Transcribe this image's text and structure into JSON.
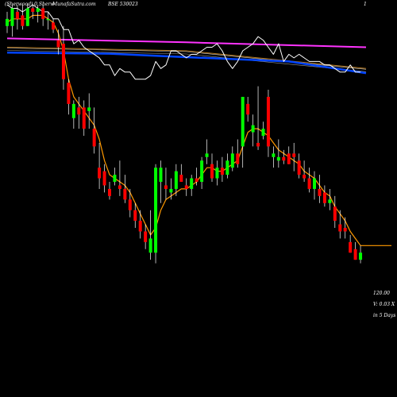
{
  "header": {
    "left": "(Sherwood) 0 Sherw",
    "site": "MunafaSutra.com",
    "ticker": "BSE 530023",
    "right": "1"
  },
  "side_labels": {
    "price": "120.00",
    "volume": "V: 0.03 X",
    "period": "in 5 Days"
  },
  "colors": {
    "background": "#000000",
    "up": "#00ff00",
    "down": "#ff0000",
    "wick": "#ffffff",
    "ma_short": "#ff9900",
    "ma_long": "#0044ff",
    "ma_magenta": "#ff33ff",
    "oscillator": "#ffffff"
  },
  "chart_data": {
    "type": "candlestick",
    "ylim": [
      100,
      176
    ],
    "candles": [
      {
        "o": 170,
        "h": 174,
        "l": 168,
        "c": 172
      },
      {
        "o": 170,
        "h": 176,
        "l": 167,
        "c": 175
      },
      {
        "o": 174,
        "h": 176,
        "l": 169,
        "c": 172
      },
      {
        "o": 173,
        "h": 176,
        "l": 169,
        "c": 170
      },
      {
        "o": 170,
        "h": 176,
        "l": 170,
        "c": 175
      },
      {
        "o": 175,
        "h": 176,
        "l": 172,
        "c": 174
      },
      {
        "o": 174,
        "h": 176,
        "l": 171,
        "c": 175
      },
      {
        "o": 175,
        "h": 176,
        "l": 170,
        "c": 172
      },
      {
        "o": 172,
        "h": 174,
        "l": 169,
        "c": 172
      },
      {
        "o": 171,
        "h": 172,
        "l": 168,
        "c": 169
      },
      {
        "o": 166,
        "h": 169,
        "l": 162,
        "c": 164
      },
      {
        "o": 165,
        "h": 170,
        "l": 152,
        "c": 155
      },
      {
        "o": 154,
        "h": 155,
        "l": 145,
        "c": 148
      },
      {
        "o": 144,
        "h": 149,
        "l": 141,
        "c": 148
      },
      {
        "o": 147,
        "h": 150,
        "l": 141,
        "c": 145
      },
      {
        "o": 147,
        "h": 149,
        "l": 139,
        "c": 141
      },
      {
        "o": 146,
        "h": 151,
        "l": 141,
        "c": 147
      },
      {
        "o": 141,
        "h": 147,
        "l": 134,
        "c": 136
      },
      {
        "o": 130,
        "h": 137,
        "l": 124,
        "c": 127
      },
      {
        "o": 129,
        "h": 131,
        "l": 123,
        "c": 125
      },
      {
        "o": 124,
        "h": 126,
        "l": 121,
        "c": 122
      },
      {
        "o": 126,
        "h": 130,
        "l": 125,
        "c": 128
      },
      {
        "o": 125,
        "h": 132,
        "l": 122,
        "c": 124
      },
      {
        "o": 124,
        "h": 128,
        "l": 120,
        "c": 121
      },
      {
        "o": 121,
        "h": 124,
        "l": 116,
        "c": 118
      },
      {
        "o": 118,
        "h": 120,
        "l": 113,
        "c": 115
      },
      {
        "o": 115,
        "h": 118,
        "l": 110,
        "c": 112
      },
      {
        "o": 112,
        "h": 114,
        "l": 107,
        "c": 109
      },
      {
        "o": 106,
        "h": 118,
        "l": 104,
        "c": 110
      },
      {
        "o": 106,
        "h": 131,
        "l": 103,
        "c": 130
      },
      {
        "o": 126,
        "h": 132,
        "l": 120,
        "c": 130
      },
      {
        "o": 125,
        "h": 130,
        "l": 121,
        "c": 124
      },
      {
        "o": 123,
        "h": 127,
        "l": 121,
        "c": 124
      },
      {
        "o": 124,
        "h": 131,
        "l": 122,
        "c": 129
      },
      {
        "o": 128,
        "h": 131,
        "l": 126,
        "c": 126
      },
      {
        "o": 125,
        "h": 127,
        "l": 122,
        "c": 124
      },
      {
        "o": 124,
        "h": 128,
        "l": 122,
        "c": 127
      },
      {
        "o": 127,
        "h": 130,
        "l": 125,
        "c": 126
      },
      {
        "o": 126,
        "h": 133,
        "l": 124,
        "c": 132
      },
      {
        "o": 133,
        "h": 138,
        "l": 131,
        "c": 134
      },
      {
        "o": 131,
        "h": 134,
        "l": 126,
        "c": 127
      },
      {
        "o": 127,
        "h": 132,
        "l": 125,
        "c": 130
      },
      {
        "o": 130,
        "h": 133,
        "l": 126,
        "c": 128
      },
      {
        "o": 128,
        "h": 134,
        "l": 127,
        "c": 132
      },
      {
        "o": 130,
        "h": 136,
        "l": 129,
        "c": 134
      },
      {
        "o": 134,
        "h": 138,
        "l": 130,
        "c": 131
      },
      {
        "o": 136,
        "h": 150,
        "l": 130,
        "c": 150
      },
      {
        "o": 148,
        "h": 150,
        "l": 143,
        "c": 145
      },
      {
        "o": 140,
        "h": 145,
        "l": 136,
        "c": 142
      },
      {
        "o": 137,
        "h": 153,
        "l": 135,
        "c": 136
      },
      {
        "o": 139,
        "h": 143,
        "l": 138,
        "c": 141
      },
      {
        "o": 150,
        "h": 152,
        "l": 133,
        "c": 136
      },
      {
        "o": 133,
        "h": 136,
        "l": 130,
        "c": 134
      },
      {
        "o": 132,
        "h": 138,
        "l": 130,
        "c": 133
      },
      {
        "o": 133,
        "h": 135,
        "l": 131,
        "c": 132
      },
      {
        "o": 134,
        "h": 136,
        "l": 131,
        "c": 131
      },
      {
        "o": 134,
        "h": 137,
        "l": 129,
        "c": 133
      },
      {
        "o": 132,
        "h": 134,
        "l": 127,
        "c": 128
      },
      {
        "o": 128,
        "h": 132,
        "l": 126,
        "c": 127
      },
      {
        "o": 127,
        "h": 130,
        "l": 123,
        "c": 124
      },
      {
        "o": 124,
        "h": 129,
        "l": 121,
        "c": 127
      },
      {
        "o": 124,
        "h": 128,
        "l": 120,
        "c": 122
      },
      {
        "o": 123,
        "h": 125,
        "l": 119,
        "c": 120
      },
      {
        "o": 120,
        "h": 124,
        "l": 118,
        "c": 121
      },
      {
        "o": 119,
        "h": 122,
        "l": 113,
        "c": 115
      },
      {
        "o": 114,
        "h": 118,
        "l": 110,
        "c": 112
      },
      {
        "o": 113,
        "h": 116,
        "l": 110,
        "c": 112
      },
      {
        "o": 109,
        "h": 111,
        "l": 106,
        "c": 106
      },
      {
        "o": 107,
        "h": 109,
        "l": 104,
        "c": 104
      },
      {
        "o": 104,
        "h": 108,
        "l": 103,
        "c": 106
      }
    ],
    "ma_short": [
      171,
      172,
      172,
      172,
      172,
      173,
      173,
      173,
      172,
      171,
      168,
      163,
      155,
      150,
      148,
      146,
      144,
      142,
      138,
      132,
      128,
      127,
      126,
      125,
      123,
      120,
      117,
      114,
      111,
      113,
      118,
      121,
      122,
      123,
      124,
      124,
      125,
      126,
      128,
      130,
      130,
      129,
      129,
      130,
      131,
      132,
      136,
      140,
      141,
      141,
      140,
      139,
      137,
      135,
      134,
      133,
      132,
      131,
      129,
      128,
      127,
      125,
      123,
      122,
      119,
      117,
      115,
      112,
      110,
      108
    ],
    "ma_long": [
      {
        "i": 0,
        "y": 162.5
      },
      {
        "i": 20,
        "y": 162.2
      },
      {
        "i": 35,
        "y": 161.2
      },
      {
        "i": 55,
        "y": 160.0
      },
      {
        "i": 69,
        "y": 156.7
      }
    ],
    "ma_mid": [
      {
        "i": 0,
        "y": 164.0
      },
      {
        "i": 35,
        "y": 163.0
      },
      {
        "i": 69,
        "y": 158.0
      }
    ],
    "ma_magenta": [
      {
        "i": 0,
        "y": 166.5
      },
      {
        "i": 35,
        "y": 165.4
      },
      {
        "i": 69,
        "y": 164.0
      }
    ],
    "oscillator": [
      176,
      175,
      175,
      174,
      175,
      176,
      175,
      174,
      174,
      172,
      172,
      169,
      169,
      165,
      166,
      164,
      163,
      162,
      161,
      159,
      159,
      156,
      158,
      157,
      157,
      155,
      155,
      155,
      156,
      160,
      158,
      159,
      163,
      163,
      162,
      161,
      162,
      162,
      163,
      164,
      164,
      165,
      163,
      160,
      158,
      160,
      163,
      164,
      165,
      167,
      166,
      164,
      162,
      165,
      160,
      162,
      161,
      162,
      161,
      160,
      160,
      160,
      159,
      159,
      158,
      157,
      157,
      159,
      157,
      157
    ]
  }
}
